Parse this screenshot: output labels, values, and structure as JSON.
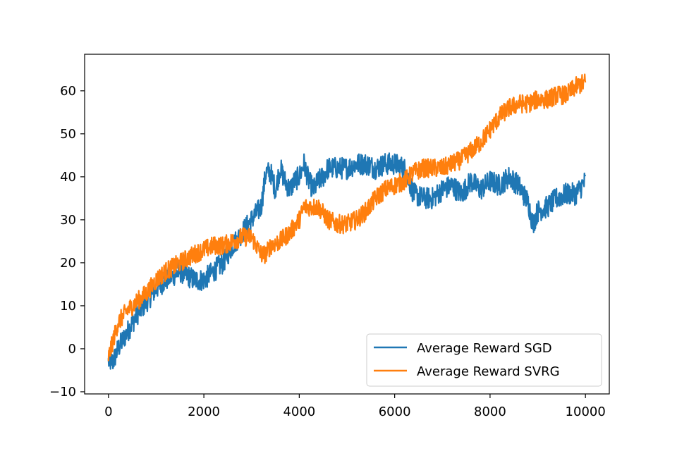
{
  "chart_data": {
    "type": "line",
    "title": "",
    "xlabel": "",
    "ylabel": "",
    "xlim": [
      -500,
      10500
    ],
    "ylim": [
      -10.5,
      68.5
    ],
    "xticks": [
      0,
      2000,
      4000,
      6000,
      8000,
      10000
    ],
    "yticks": [
      -10,
      0,
      10,
      20,
      30,
      40,
      50,
      60
    ],
    "xtick_labels": [
      "0",
      "2000",
      "4000",
      "6000",
      "8000",
      "10000"
    ],
    "ytick_labels": [
      "−10",
      "0",
      "10",
      "20",
      "30",
      "40",
      "50",
      "60"
    ],
    "legend": "lower-right",
    "grid": false,
    "series": [
      {
        "name": "Average Reward SGD",
        "color": "#1f77b4",
        "x": [
          0,
          100,
          200,
          400,
          600,
          800,
          1000,
          1200,
          1500,
          1800,
          2000,
          2200,
          2400,
          2600,
          2800,
          3000,
          3200,
          3300,
          3400,
          3500,
          3600,
          3700,
          3800,
          3900,
          4000,
          4100,
          4200,
          4300,
          4400,
          4500,
          4600,
          4800,
          5000,
          5200,
          5400,
          5600,
          5800,
          6000,
          6200,
          6400,
          6600,
          6800,
          7000,
          7200,
          7400,
          7600,
          7800,
          8000,
          8200,
          8400,
          8600,
          8800,
          8900,
          9000,
          9200,
          9400,
          9600,
          9800,
          10000
        ],
        "y": [
          -3,
          -3,
          0,
          4,
          8,
          11,
          14,
          16,
          18,
          16,
          16,
          18,
          20,
          24,
          27,
          30,
          33,
          41,
          41,
          37,
          42,
          39,
          37,
          39,
          40,
          43,
          39,
          37,
          39,
          40,
          42,
          42,
          42,
          43,
          43,
          42,
          43,
          43,
          42,
          36,
          35,
          35,
          37,
          38,
          36,
          39,
          37,
          39,
          38,
          40,
          38,
          34,
          29,
          32,
          33,
          35,
          36,
          36,
          39
        ]
      },
      {
        "name": "Average Reward SVRG",
        "color": "#ff7f0e",
        "x": [
          0,
          100,
          200,
          400,
          600,
          800,
          1000,
          1200,
          1500,
          1800,
          2000,
          2200,
          2400,
          2600,
          2800,
          3000,
          3200,
          3300,
          3400,
          3600,
          3800,
          4000,
          4100,
          4200,
          4400,
          4600,
          4800,
          5000,
          5200,
          5400,
          5600,
          5800,
          6000,
          6200,
          6400,
          6600,
          6800,
          7000,
          7200,
          7400,
          7600,
          7800,
          8000,
          8200,
          8400,
          8600,
          8800,
          9000,
          9200,
          9400,
          9600,
          9800,
          10000
        ],
        "y": [
          -2,
          2,
          6,
          9,
          11,
          13,
          16,
          18,
          20,
          22,
          23,
          24,
          24,
          25,
          26,
          26,
          22,
          22,
          24,
          25,
          27,
          30,
          33,
          33,
          33,
          30,
          29,
          29,
          30,
          32,
          35,
          37,
          38,
          39,
          41,
          42,
          42,
          42,
          43,
          44,
          46,
          48,
          51,
          54,
          56,
          57,
          57,
          58,
          58,
          59,
          59,
          61,
          62
        ]
      }
    ]
  }
}
